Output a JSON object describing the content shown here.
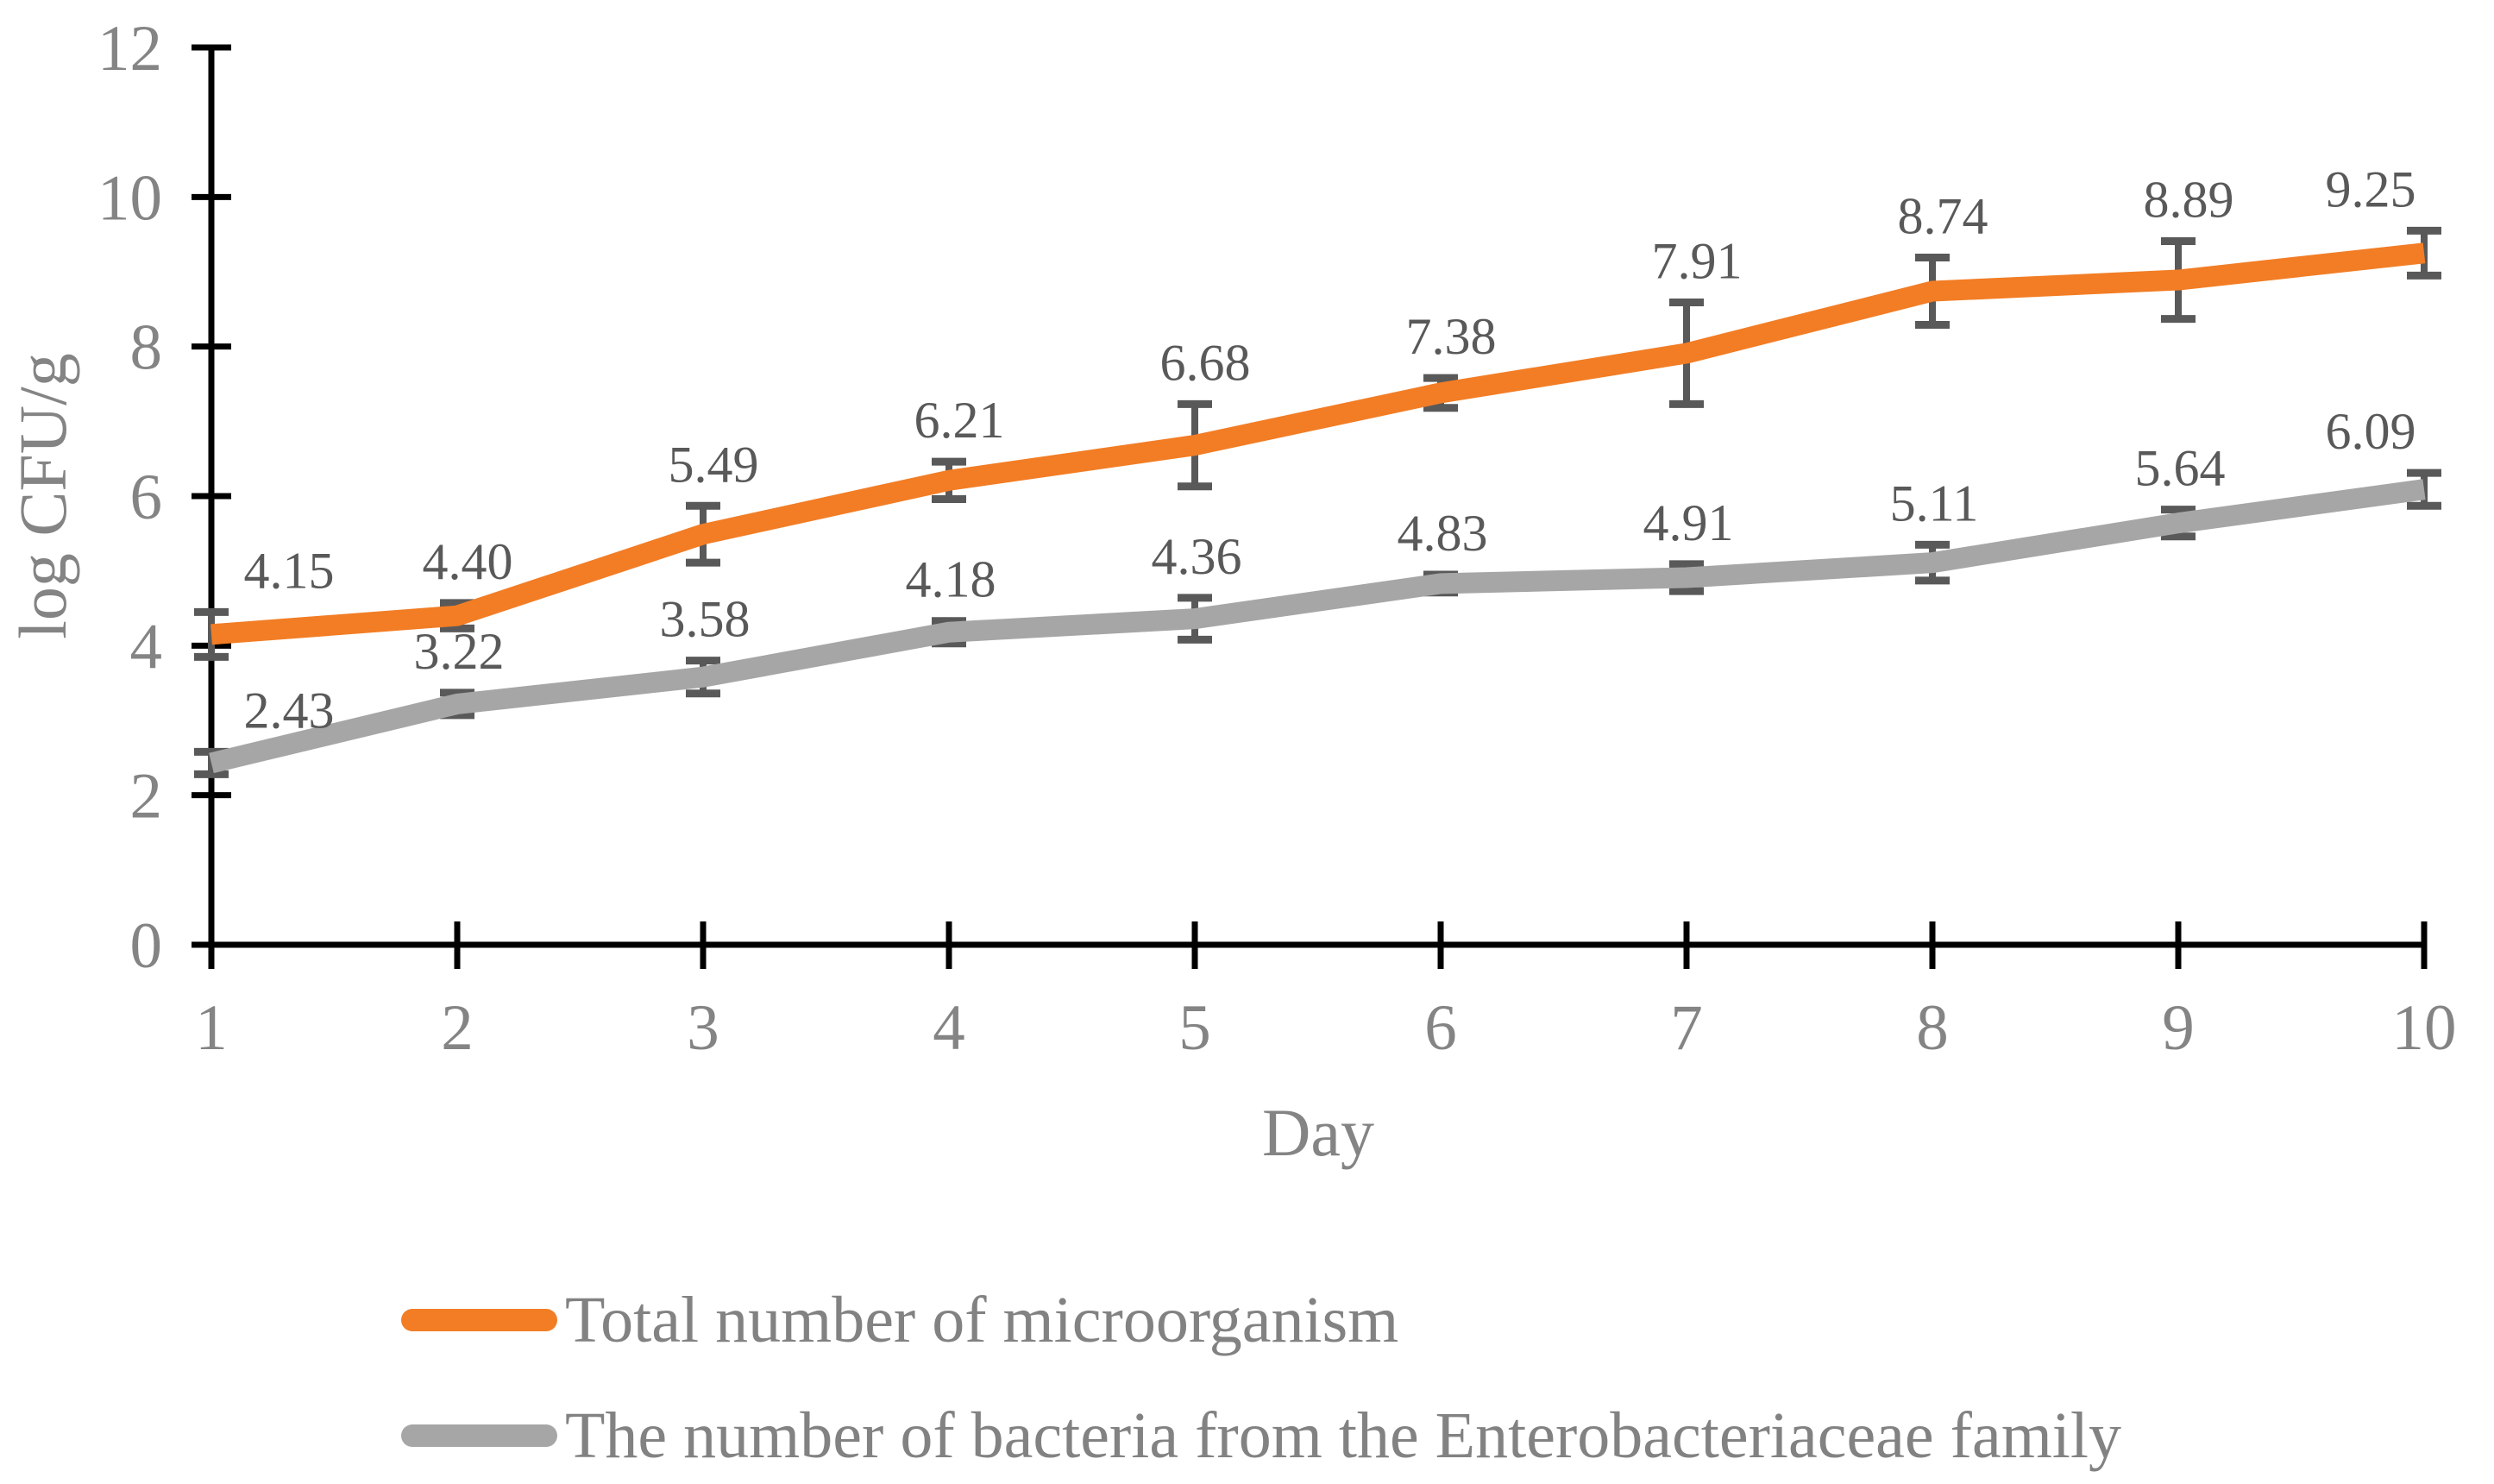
{
  "figure": {
    "background": "#FFFFFF"
  },
  "chart_data": {
    "type": "line",
    "title": "",
    "xlabel": "Day",
    "ylabel": "log CFU/g",
    "x": [
      1,
      2,
      3,
      4,
      5,
      6,
      7,
      8,
      9,
      10
    ],
    "xlim": [
      1,
      10
    ],
    "ylim": [
      0,
      12
    ],
    "yticks": [
      0,
      2,
      4,
      6,
      8,
      10,
      12
    ],
    "grid": false,
    "legend_position": "bottom-left",
    "error_bars_shown": true,
    "series": [
      {
        "name": "Total number of microorganism",
        "color": "#F27D25",
        "values": [
          4.15,
          4.4,
          5.49,
          6.21,
          6.68,
          7.38,
          7.91,
          8.74,
          8.89,
          9.25
        ],
        "data_labels": [
          "4.15",
          "4.40",
          "5.49",
          "6.21",
          "6.68",
          "7.38",
          "7.91",
          "8.74",
          "8.89",
          "9.25"
        ],
        "error_bars": [
          0.3,
          0.17,
          0.38,
          0.25,
          0.55,
          0.2,
          0.68,
          0.45,
          0.52,
          0.3
        ]
      },
      {
        "name": "The number of bacteria from the Enterobacteriaceae family",
        "color": "#A6A6A6",
        "values": [
          2.43,
          3.22,
          3.58,
          4.18,
          4.36,
          4.83,
          4.91,
          5.11,
          5.64,
          6.09
        ],
        "data_labels": [
          "2.43",
          "3.22",
          "3.58",
          "4.18",
          "4.36",
          "4.83",
          "4.91",
          "5.11",
          "5.64",
          "6.09"
        ],
        "error_bars": [
          0.15,
          0.15,
          0.22,
          0.15,
          0.28,
          0.12,
          0.18,
          0.24,
          0.18,
          0.22
        ]
      }
    ],
    "colors": {
      "axis": "#000000",
      "tick_label": "#848484",
      "axis_title": "#848484",
      "data_label": "#595959",
      "error_bar": "#595959",
      "legend_text": "#828282"
    }
  }
}
